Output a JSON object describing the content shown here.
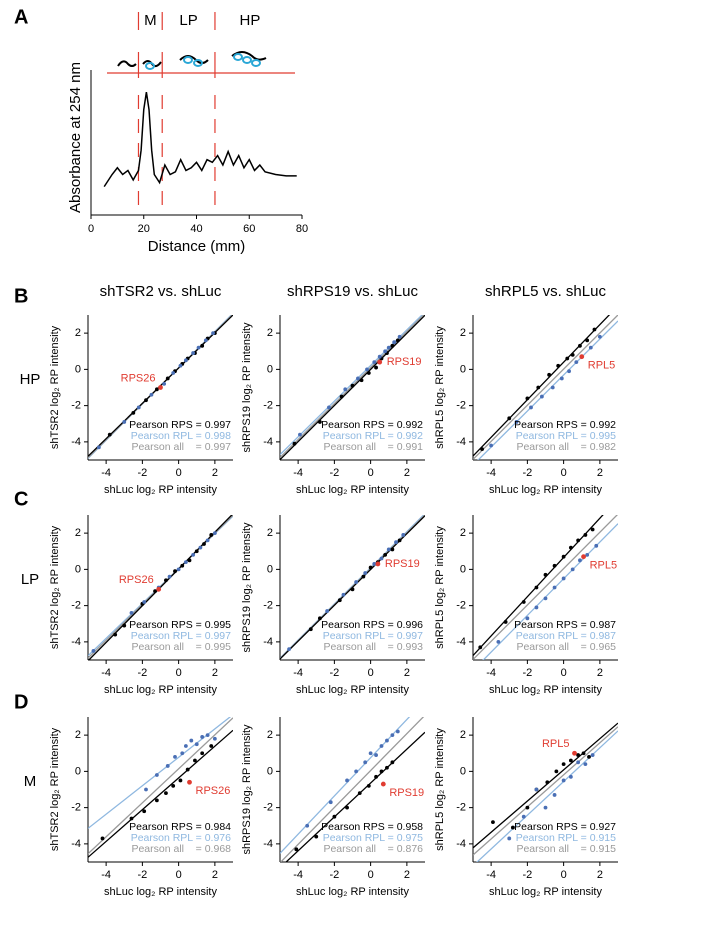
{
  "figure": {
    "panel_labels": [
      "A",
      "B",
      "C",
      "D"
    ],
    "row_labels": [
      "HP",
      "LP",
      "M"
    ],
    "column_titles": [
      "shTSR2 vs. shLuc",
      "shRPS19 vs. shLuc",
      "shRPL5 vs. shLuc"
    ]
  },
  "chart_data": [
    {
      "type": "line",
      "xlabel": "Distance (mm)",
      "ylabel": "Absorbance at 254 nm",
      "color": "#000000",
      "xlim": [
        0,
        80
      ],
      "xticks": [
        0,
        20,
        40,
        60,
        80
      ],
      "ylim": [
        0,
        1
      ],
      "boundaries": [
        18,
        27,
        47
      ],
      "boundary_color": "#e03c31",
      "fraction_labels": [
        "M",
        "LP",
        "HP"
      ],
      "x": [
        5,
        8,
        10,
        12,
        14,
        16,
        18,
        19,
        20,
        21,
        22,
        23,
        24,
        26,
        28,
        30,
        32,
        34,
        36,
        38,
        40,
        42,
        44,
        46,
        48,
        50,
        52,
        54,
        56,
        58,
        60,
        62,
        64,
        66,
        70,
        74,
        78
      ],
      "values": [
        0.21,
        0.3,
        0.35,
        0.3,
        0.33,
        0.26,
        0.33,
        0.48,
        0.78,
        0.91,
        0.78,
        0.48,
        0.3,
        0.24,
        0.37,
        0.3,
        0.32,
        0.41,
        0.33,
        0.35,
        0.39,
        0.33,
        0.41,
        0.39,
        0.44,
        0.37,
        0.47,
        0.37,
        0.44,
        0.35,
        0.41,
        0.33,
        0.37,
        0.32,
        0.3,
        0.29,
        0.29
      ]
    },
    {
      "type": "scatter",
      "xlabel": "shLuc log₂ RP intensity",
      "ylabel": "shTSR2 log₂ RP intensity",
      "xlim": [
        -5,
        3
      ],
      "ylim": [
        -5,
        3
      ],
      "xticks": [
        -4,
        -2,
        0,
        2
      ],
      "yticks": [
        -4,
        -2,
        0,
        2
      ],
      "series": [
        {
          "color": "#000000",
          "x": [
            -3.8,
            -2.5,
            -1.8,
            -1.2,
            -0.6,
            -0.2,
            0.2,
            0.5,
            0.9,
            1.3,
            1.6,
            2.0
          ],
          "values": [
            -3.6,
            -2.4,
            -1.7,
            -1.1,
            -0.5,
            -0.1,
            0.3,
            0.6,
            0.9,
            1.3,
            1.7,
            2.0
          ]
        },
        {
          "color": "#4a6fb5",
          "x": [
            -4.4,
            -3.0,
            -2.2,
            -1.5,
            -0.8,
            -0.3,
            0.1,
            0.4,
            0.8,
            1.1,
            1.5,
            1.9
          ],
          "values": [
            -4.3,
            -2.9,
            -2.1,
            -1.4,
            -0.8,
            -0.2,
            0.2,
            0.5,
            0.9,
            1.2,
            1.6,
            2.0
          ]
        },
        {
          "name": "RPS26",
          "color": "#e03c31",
          "label_position": "upper left",
          "x": [
            -1.0
          ],
          "values": [
            -1.0
          ]
        }
      ],
      "annotations": [
        {
          "text": "Pearson RPS = 0.997",
          "color": "#000000"
        },
        {
          "text": "Pearson RPL = 0.998",
          "color": "#8fb8e0"
        },
        {
          "text": "Pearson all    = 0.997",
          "color": "#9a9a9a"
        }
      ]
    },
    {
      "type": "scatter",
      "xlabel": "shLuc log₂ RP intensity",
      "ylabel": "shRPS19 log₂ RP intensity",
      "xlim": [
        -5,
        3
      ],
      "ylim": [
        -5,
        3
      ],
      "xticks": [
        -4,
        -2,
        0,
        2
      ],
      "yticks": [
        -4,
        -2,
        0,
        2
      ],
      "series": [
        {
          "color": "#000000",
          "x": [
            -4.2,
            -2.8,
            -1.6,
            -1.0,
            -0.5,
            -0.1,
            0.3,
            0.6,
            0.9,
            1.2,
            1.5
          ],
          "values": [
            -4.1,
            -2.9,
            -1.5,
            -0.9,
            -0.6,
            -0.2,
            0.1,
            0.6,
            0.9,
            1.3,
            1.6
          ]
        },
        {
          "color": "#4a6fb5",
          "x": [
            -3.9,
            -2.3,
            -1.4,
            -0.7,
            -0.2,
            0.2,
            0.5,
            0.8,
            1.0,
            1.3,
            1.6
          ],
          "values": [
            -3.6,
            -2.1,
            -1.1,
            -0.5,
            0.0,
            0.4,
            0.7,
            1.0,
            1.2,
            1.5,
            1.8
          ]
        },
        {
          "name": "RPS19",
          "color": "#e03c31",
          "label_position": "right",
          "x": [
            0.5
          ],
          "values": [
            0.4
          ]
        }
      ],
      "annotations": [
        {
          "text": "Pearson RPS = 0.992",
          "color": "#000000"
        },
        {
          "text": "Pearson RPL = 0.992",
          "color": "#8fb8e0"
        },
        {
          "text": "Pearson all    = 0.991",
          "color": "#9a9a9a"
        }
      ]
    },
    {
      "type": "scatter",
      "xlabel": "shLuc log₂ RP intensity",
      "ylabel": "shRPL5 log₂ RP intensity",
      "xlim": [
        -5,
        3
      ],
      "ylim": [
        -5,
        3
      ],
      "xticks": [
        -4,
        -2,
        0,
        2
      ],
      "yticks": [
        -4,
        -2,
        0,
        2
      ],
      "series": [
        {
          "color": "#000000",
          "x": [
            -4.5,
            -3.0,
            -2.0,
            -1.4,
            -0.8,
            -0.3,
            0.2,
            0.5,
            0.9,
            1.3,
            1.7
          ],
          "values": [
            -4.4,
            -2.7,
            -1.6,
            -1.0,
            -0.3,
            0.2,
            0.6,
            0.8,
            1.3,
            1.6,
            2.2
          ]
        },
        {
          "color": "#4a6fb5",
          "x": [
            -4.0,
            -2.6,
            -1.8,
            -1.2,
            -0.6,
            -0.1,
            0.3,
            0.7,
            1.0,
            1.5,
            2.0
          ],
          "values": [
            -4.2,
            -2.9,
            -2.1,
            -1.5,
            -1.0,
            -0.5,
            -0.1,
            0.4,
            0.7,
            1.2,
            1.8
          ]
        },
        {
          "name": "RPL5",
          "color": "#e03c31",
          "label_position": "lower right",
          "x": [
            1.0
          ],
          "values": [
            0.7
          ]
        }
      ],
      "annotations": [
        {
          "text": "Pearson RPS = 0.992",
          "color": "#000000"
        },
        {
          "text": "Pearson RPL = 0.995",
          "color": "#8fb8e0"
        },
        {
          "text": "Pearson all    = 0.982",
          "color": "#9a9a9a"
        }
      ]
    },
    {
      "type": "scatter",
      "xlabel": "shLuc log₂ RP intensity",
      "ylabel": "shTSR2 log₂ RP intensity",
      "xlim": [
        -5,
        3
      ],
      "ylim": [
        -5,
        3
      ],
      "xticks": [
        -4,
        -2,
        0,
        2
      ],
      "yticks": [
        -4,
        -2,
        0,
        2
      ],
      "series": [
        {
          "color": "#000000",
          "x": [
            -3.5,
            -3.0,
            -2.0,
            -1.3,
            -0.7,
            -0.2,
            0.2,
            0.6,
            1.0,
            1.4,
            1.8
          ],
          "values": [
            -3.6,
            -3.1,
            -1.9,
            -1.2,
            -0.6,
            -0.1,
            0.2,
            0.5,
            1.0,
            1.4,
            1.9
          ]
        },
        {
          "color": "#4a6fb5",
          "x": [
            -4.7,
            -2.6,
            -1.9,
            -1.1,
            -0.5,
            0.0,
            0.4,
            0.8,
            1.2,
            1.6,
            2.0
          ],
          "values": [
            -4.5,
            -2.4,
            -1.8,
            -1.0,
            -0.4,
            0.0,
            0.4,
            0.8,
            1.2,
            1.6,
            2.0
          ]
        },
        {
          "name": "RPS26",
          "color": "#e03c31",
          "label_position": "upper left",
          "x": [
            -1.1
          ],
          "values": [
            -1.1
          ]
        }
      ],
      "annotations": [
        {
          "text": "Pearson RPS = 0.995",
          "color": "#000000"
        },
        {
          "text": "Pearson RPL = 0.997",
          "color": "#8fb8e0"
        },
        {
          "text": "Pearson all    = 0.995",
          "color": "#9a9a9a"
        }
      ]
    },
    {
      "type": "scatter",
      "xlabel": "shLuc log₂ RP intensity",
      "ylabel": "shRPS19 log₂ RP intensity",
      "xlim": [
        -5,
        3
      ],
      "ylim": [
        -5,
        3
      ],
      "xticks": [
        -4,
        -2,
        0,
        2
      ],
      "yticks": [
        -4,
        -2,
        0,
        2
      ],
      "series": [
        {
          "color": "#000000",
          "x": [
            -3.3,
            -2.8,
            -1.7,
            -1.0,
            -0.4,
            0.0,
            0.4,
            0.8,
            1.2,
            1.6
          ],
          "values": [
            -3.3,
            -2.7,
            -1.7,
            -1.1,
            -0.4,
            0.1,
            0.4,
            0.8,
            1.1,
            1.6
          ]
        },
        {
          "color": "#4a6fb5",
          "x": [
            -4.5,
            -2.4,
            -1.5,
            -0.8,
            -0.3,
            0.2,
            0.6,
            1.0,
            1.4,
            1.8
          ],
          "values": [
            -4.4,
            -2.3,
            -1.4,
            -0.7,
            -0.2,
            0.3,
            0.6,
            1.1,
            1.5,
            1.9
          ]
        },
        {
          "name": "RPS19",
          "color": "#e03c31",
          "label_position": "right",
          "x": [
            0.4
          ],
          "values": [
            0.3
          ]
        }
      ],
      "annotations": [
        {
          "text": "Pearson RPS = 0.996",
          "color": "#000000"
        },
        {
          "text": "Pearson RPL = 0.997",
          "color": "#8fb8e0"
        },
        {
          "text": "Pearson all    = 0.993",
          "color": "#9a9a9a"
        }
      ]
    },
    {
      "type": "scatter",
      "xlabel": "shLuc log₂ RP intensity",
      "ylabel": "shRPL5 log₂ RP intensity",
      "xlim": [
        -5,
        3
      ],
      "ylim": [
        -5,
        3
      ],
      "xticks": [
        -4,
        -2,
        0,
        2
      ],
      "yticks": [
        -4,
        -2,
        0,
        2
      ],
      "series": [
        {
          "color": "#000000",
          "x": [
            -4.6,
            -3.2,
            -2.2,
            -1.5,
            -1.0,
            -0.5,
            0.0,
            0.4,
            0.8,
            1.2,
            1.6
          ],
          "values": [
            -4.3,
            -2.9,
            -1.8,
            -1.0,
            -0.3,
            0.2,
            0.7,
            1.2,
            1.6,
            1.9,
            2.2
          ]
        },
        {
          "color": "#4a6fb5",
          "x": [
            -3.6,
            -2.0,
            -1.5,
            -1.0,
            -0.5,
            0.0,
            0.5,
            0.9,
            1.3,
            1.8
          ],
          "values": [
            -4.0,
            -2.7,
            -2.1,
            -1.6,
            -1.0,
            -0.5,
            0.0,
            0.5,
            0.8,
            1.3
          ]
        },
        {
          "name": "RPL5",
          "color": "#e03c31",
          "label_position": "lower right",
          "x": [
            1.1
          ],
          "values": [
            0.7
          ]
        }
      ],
      "annotations": [
        {
          "text": "Pearson RPS = 0.987",
          "color": "#000000"
        },
        {
          "text": "Pearson RPL = 0.987",
          "color": "#8fb8e0"
        },
        {
          "text": "Pearson all    = 0.965",
          "color": "#9a9a9a"
        }
      ]
    },
    {
      "type": "scatter",
      "xlabel": "shLuc log₂ RP intensity",
      "ylabel": "shTSR2 log₂ RP intensity",
      "xlim": [
        -5,
        3
      ],
      "ylim": [
        -5,
        3
      ],
      "xticks": [
        -4,
        -2,
        0,
        2
      ],
      "yticks": [
        -4,
        -2,
        0,
        2
      ],
      "series": [
        {
          "color": "#000000",
          "x": [
            -4.2,
            -2.6,
            -1.9,
            -1.2,
            -0.7,
            -0.3,
            0.1,
            0.5,
            0.9,
            1.3,
            1.8
          ],
          "values": [
            -3.7,
            -2.6,
            -2.2,
            -1.6,
            -1.2,
            -0.8,
            -0.5,
            0.1,
            0.6,
            1.0,
            1.4
          ]
        },
        {
          "color": "#4a6fb5",
          "x": [
            -1.8,
            -1.2,
            -0.6,
            -0.2,
            0.2,
            0.4,
            0.7,
            1.0,
            1.3,
            1.6,
            2.0
          ],
          "values": [
            -1.0,
            -0.2,
            0.3,
            0.8,
            1.0,
            1.4,
            1.7,
            1.5,
            1.9,
            2.0,
            1.8
          ]
        },
        {
          "name": "RPS26",
          "color": "#e03c31",
          "label_position": "lower right",
          "x": [
            0.6
          ],
          "values": [
            -0.6
          ]
        }
      ],
      "annotations": [
        {
          "text": "Pearson RPS = 0.984",
          "color": "#000000"
        },
        {
          "text": "Pearson RPL = 0.976",
          "color": "#8fb8e0"
        },
        {
          "text": "Pearson all    = 0.968",
          "color": "#9a9a9a"
        }
      ]
    },
    {
      "type": "scatter",
      "xlabel": "shLuc log₂ RP intensity",
      "ylabel": "shRPS19 log₂ RP intensity",
      "xlim": [
        -5,
        3
      ],
      "ylim": [
        -5,
        3
      ],
      "xticks": [
        -4,
        -2,
        0,
        2
      ],
      "yticks": [
        -4,
        -2,
        0,
        2
      ],
      "series": [
        {
          "color": "#000000",
          "x": [
            -4.1,
            -3.0,
            -2.0,
            -1.3,
            -0.6,
            -0.1,
            0.3,
            0.6,
            0.9,
            1.2
          ],
          "values": [
            -4.3,
            -3.6,
            -2.5,
            -2.0,
            -1.2,
            -0.8,
            -0.3,
            0.0,
            0.2,
            0.5
          ]
        },
        {
          "color": "#4a6fb5",
          "x": [
            -3.5,
            -2.2,
            -1.3,
            -0.8,
            -0.3,
            0.0,
            0.3,
            0.6,
            0.9,
            1.2,
            1.5
          ],
          "values": [
            -3.0,
            -1.7,
            -0.5,
            0.0,
            0.5,
            1.0,
            0.9,
            1.4,
            1.7,
            2.0,
            2.2
          ]
        },
        {
          "name": "RPS19",
          "color": "#e03c31",
          "label_position": "lower right",
          "x": [
            0.7
          ],
          "values": [
            -0.7
          ]
        }
      ],
      "annotations": [
        {
          "text": "Pearson RPS = 0.958",
          "color": "#000000"
        },
        {
          "text": "Pearson RPL = 0.975",
          "color": "#8fb8e0"
        },
        {
          "text": "Pearson all    = 0.876",
          "color": "#9a9a9a"
        }
      ]
    },
    {
      "type": "scatter",
      "xlabel": "shLuc log₂ RP intensity",
      "ylabel": "shRPL5 log₂ RP intensity",
      "xlim": [
        -5,
        3
      ],
      "ylim": [
        -5,
        3
      ],
      "xticks": [
        -4,
        -2,
        0,
        2
      ],
      "yticks": [
        -4,
        -2,
        0,
        2
      ],
      "series": [
        {
          "color": "#000000",
          "x": [
            -3.9,
            -2.8,
            -2.0,
            -1.5,
            -0.9,
            -0.4,
            0.0,
            0.4,
            0.8,
            1.1,
            1.4
          ],
          "values": [
            -2.8,
            -3.1,
            -2.0,
            -1.0,
            -0.6,
            0.0,
            0.4,
            0.6,
            0.9,
            1.0,
            0.8
          ]
        },
        {
          "color": "#4a6fb5",
          "x": [
            -3.0,
            -2.2,
            -1.5,
            -1.0,
            -0.5,
            0.0,
            0.4,
            0.8,
            1.2,
            1.6
          ],
          "values": [
            -3.7,
            -2.5,
            -1.0,
            -2.0,
            -1.3,
            -0.5,
            -0.3,
            0.5,
            0.4,
            0.9
          ]
        },
        {
          "name": "RPL5",
          "color": "#e03c31",
          "label_position": "upper left",
          "x": [
            0.6
          ],
          "values": [
            1.0
          ]
        }
      ],
      "annotations": [
        {
          "text": "Pearson RPS = 0.927",
          "color": "#000000"
        },
        {
          "text": "Pearson RPL = 0.915",
          "color": "#8fb8e0"
        },
        {
          "text": "Pearson all    = 0.915",
          "color": "#9a9a9a"
        }
      ]
    }
  ]
}
